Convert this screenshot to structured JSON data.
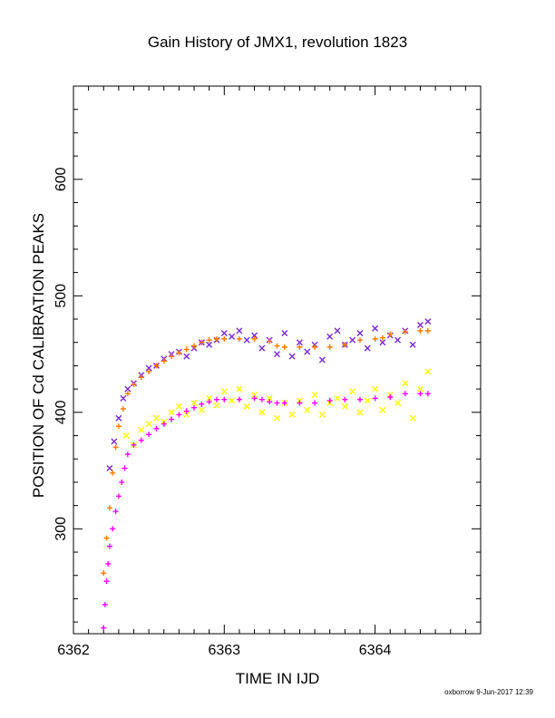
{
  "chart_data": {
    "type": "scatter",
    "title": "Gain History of JMX1, revolution 1823",
    "xlabel": "TIME IN IJD",
    "ylabel": "POSITION OF Cd CALIBRATION PEAKS",
    "xlim": [
      6362.0,
      6364.7
    ],
    "ylim": [
      210,
      680
    ],
    "x_ticks": [
      6362,
      6363,
      6364
    ],
    "y_ticks": [
      300,
      400,
      500,
      600
    ],
    "footer": "oxborrow  9-Jun-2017 12:39",
    "colors": {
      "high_points": "#7a28d6",
      "high_fit": "#ff7a00",
      "low_points": "#ffff00",
      "low_fit": "#ff00ff"
    },
    "series": [
      {
        "marker": "x",
        "color": "#7a28d6",
        "x": [
          6362.24,
          6362.27,
          6362.3,
          6362.33,
          6362.36,
          6362.4,
          6362.45,
          6362.5,
          6362.55,
          6362.6,
          6362.65,
          6362.7,
          6362.75,
          6362.8,
          6362.85,
          6362.9,
          6362.95,
          6363.0,
          6363.05,
          6363.1,
          6363.15,
          6363.2,
          6363.25,
          6363.3,
          6363.35,
          6363.4,
          6363.45,
          6363.5,
          6363.55,
          6363.6,
          6363.65,
          6363.7,
          6363.75,
          6363.8,
          6363.85,
          6363.9,
          6363.95,
          6364.0,
          6364.05,
          6364.1,
          6364.15,
          6364.2,
          6364.25,
          6364.3,
          6364.35
        ],
        "y": [
          352,
          375,
          395,
          412,
          420,
          425,
          432,
          438,
          440,
          446,
          450,
          452,
          448,
          455,
          460,
          458,
          462,
          468,
          465,
          470,
          462,
          466,
          455,
          462,
          450,
          468,
          448,
          460,
          452,
          458,
          445,
          465,
          470,
          458,
          462,
          468,
          455,
          472,
          460,
          466,
          462,
          470,
          458,
          475,
          478
        ]
      },
      {
        "marker": "+",
        "color": "#ff7a00",
        "x": [
          6362.2,
          6362.22,
          6362.24,
          6362.26,
          6362.28,
          6362.3,
          6362.33,
          6362.36,
          6362.4,
          6362.45,
          6362.5,
          6362.55,
          6362.6,
          6362.65,
          6362.7,
          6362.75,
          6362.8,
          6362.85,
          6362.9,
          6362.95,
          6363.0,
          6363.1,
          6363.2,
          6363.3,
          6363.35,
          6363.4,
          6363.5,
          6363.6,
          6363.7,
          6363.8,
          6363.9,
          6364.0,
          6364.05,
          6364.1,
          6364.2,
          6364.3,
          6364.35
        ],
        "y": [
          262,
          292,
          318,
          348,
          370,
          388,
          403,
          416,
          424,
          430,
          435,
          440,
          444,
          448,
          451,
          454,
          457,
          460,
          462,
          463,
          463,
          463,
          463,
          461,
          457,
          456,
          456,
          456,
          456,
          458,
          462,
          463,
          464,
          467,
          469,
          470,
          470
        ]
      },
      {
        "marker": "x",
        "color": "#ffff00",
        "x": [
          6362.35,
          6362.4,
          6362.45,
          6362.5,
          6362.55,
          6362.6,
          6362.65,
          6362.7,
          6362.75,
          6362.8,
          6362.85,
          6362.9,
          6362.95,
          6363.0,
          6363.05,
          6363.1,
          6363.15,
          6363.2,
          6363.25,
          6363.3,
          6363.35,
          6363.4,
          6363.45,
          6363.5,
          6363.55,
          6363.6,
          6363.65,
          6363.7,
          6363.75,
          6363.8,
          6363.85,
          6363.9,
          6363.95,
          6364.0,
          6364.05,
          6364.1,
          6364.15,
          6364.2,
          6364.25,
          6364.3,
          6364.35
        ],
        "y": [
          380,
          372,
          385,
          390,
          395,
          392,
          400,
          405,
          398,
          408,
          402,
          412,
          406,
          418,
          410,
          420,
          405,
          415,
          400,
          412,
          395,
          408,
          398,
          410,
          402,
          415,
          398,
          408,
          412,
          405,
          418,
          400,
          410,
          420,
          402,
          415,
          408,
          425,
          395,
          420,
          435
        ]
      },
      {
        "marker": "+",
        "color": "#ff00ff",
        "x": [
          6362.2,
          6362.21,
          6362.22,
          6362.23,
          6362.24,
          6362.26,
          6362.28,
          6362.3,
          6362.32,
          6362.34,
          6362.36,
          6362.4,
          6362.45,
          6362.5,
          6362.55,
          6362.6,
          6362.65,
          6362.7,
          6362.75,
          6362.8,
          6362.85,
          6362.9,
          6362.95,
          6363.0,
          6363.1,
          6363.2,
          6363.25,
          6363.3,
          6363.35,
          6363.4,
          6363.5,
          6363.6,
          6363.7,
          6363.8,
          6363.9,
          6364.0,
          6364.1,
          6364.2,
          6364.3,
          6364.35
        ],
        "y": [
          215,
          235,
          255,
          270,
          285,
          300,
          315,
          328,
          340,
          352,
          364,
          372,
          376,
          381,
          386,
          390,
          394,
          398,
          401,
          404,
          407,
          409,
          411,
          411,
          411,
          412,
          411,
          409,
          408,
          408,
          408,
          408,
          410,
          411,
          411,
          412,
          413,
          416,
          416,
          416
        ]
      }
    ]
  }
}
